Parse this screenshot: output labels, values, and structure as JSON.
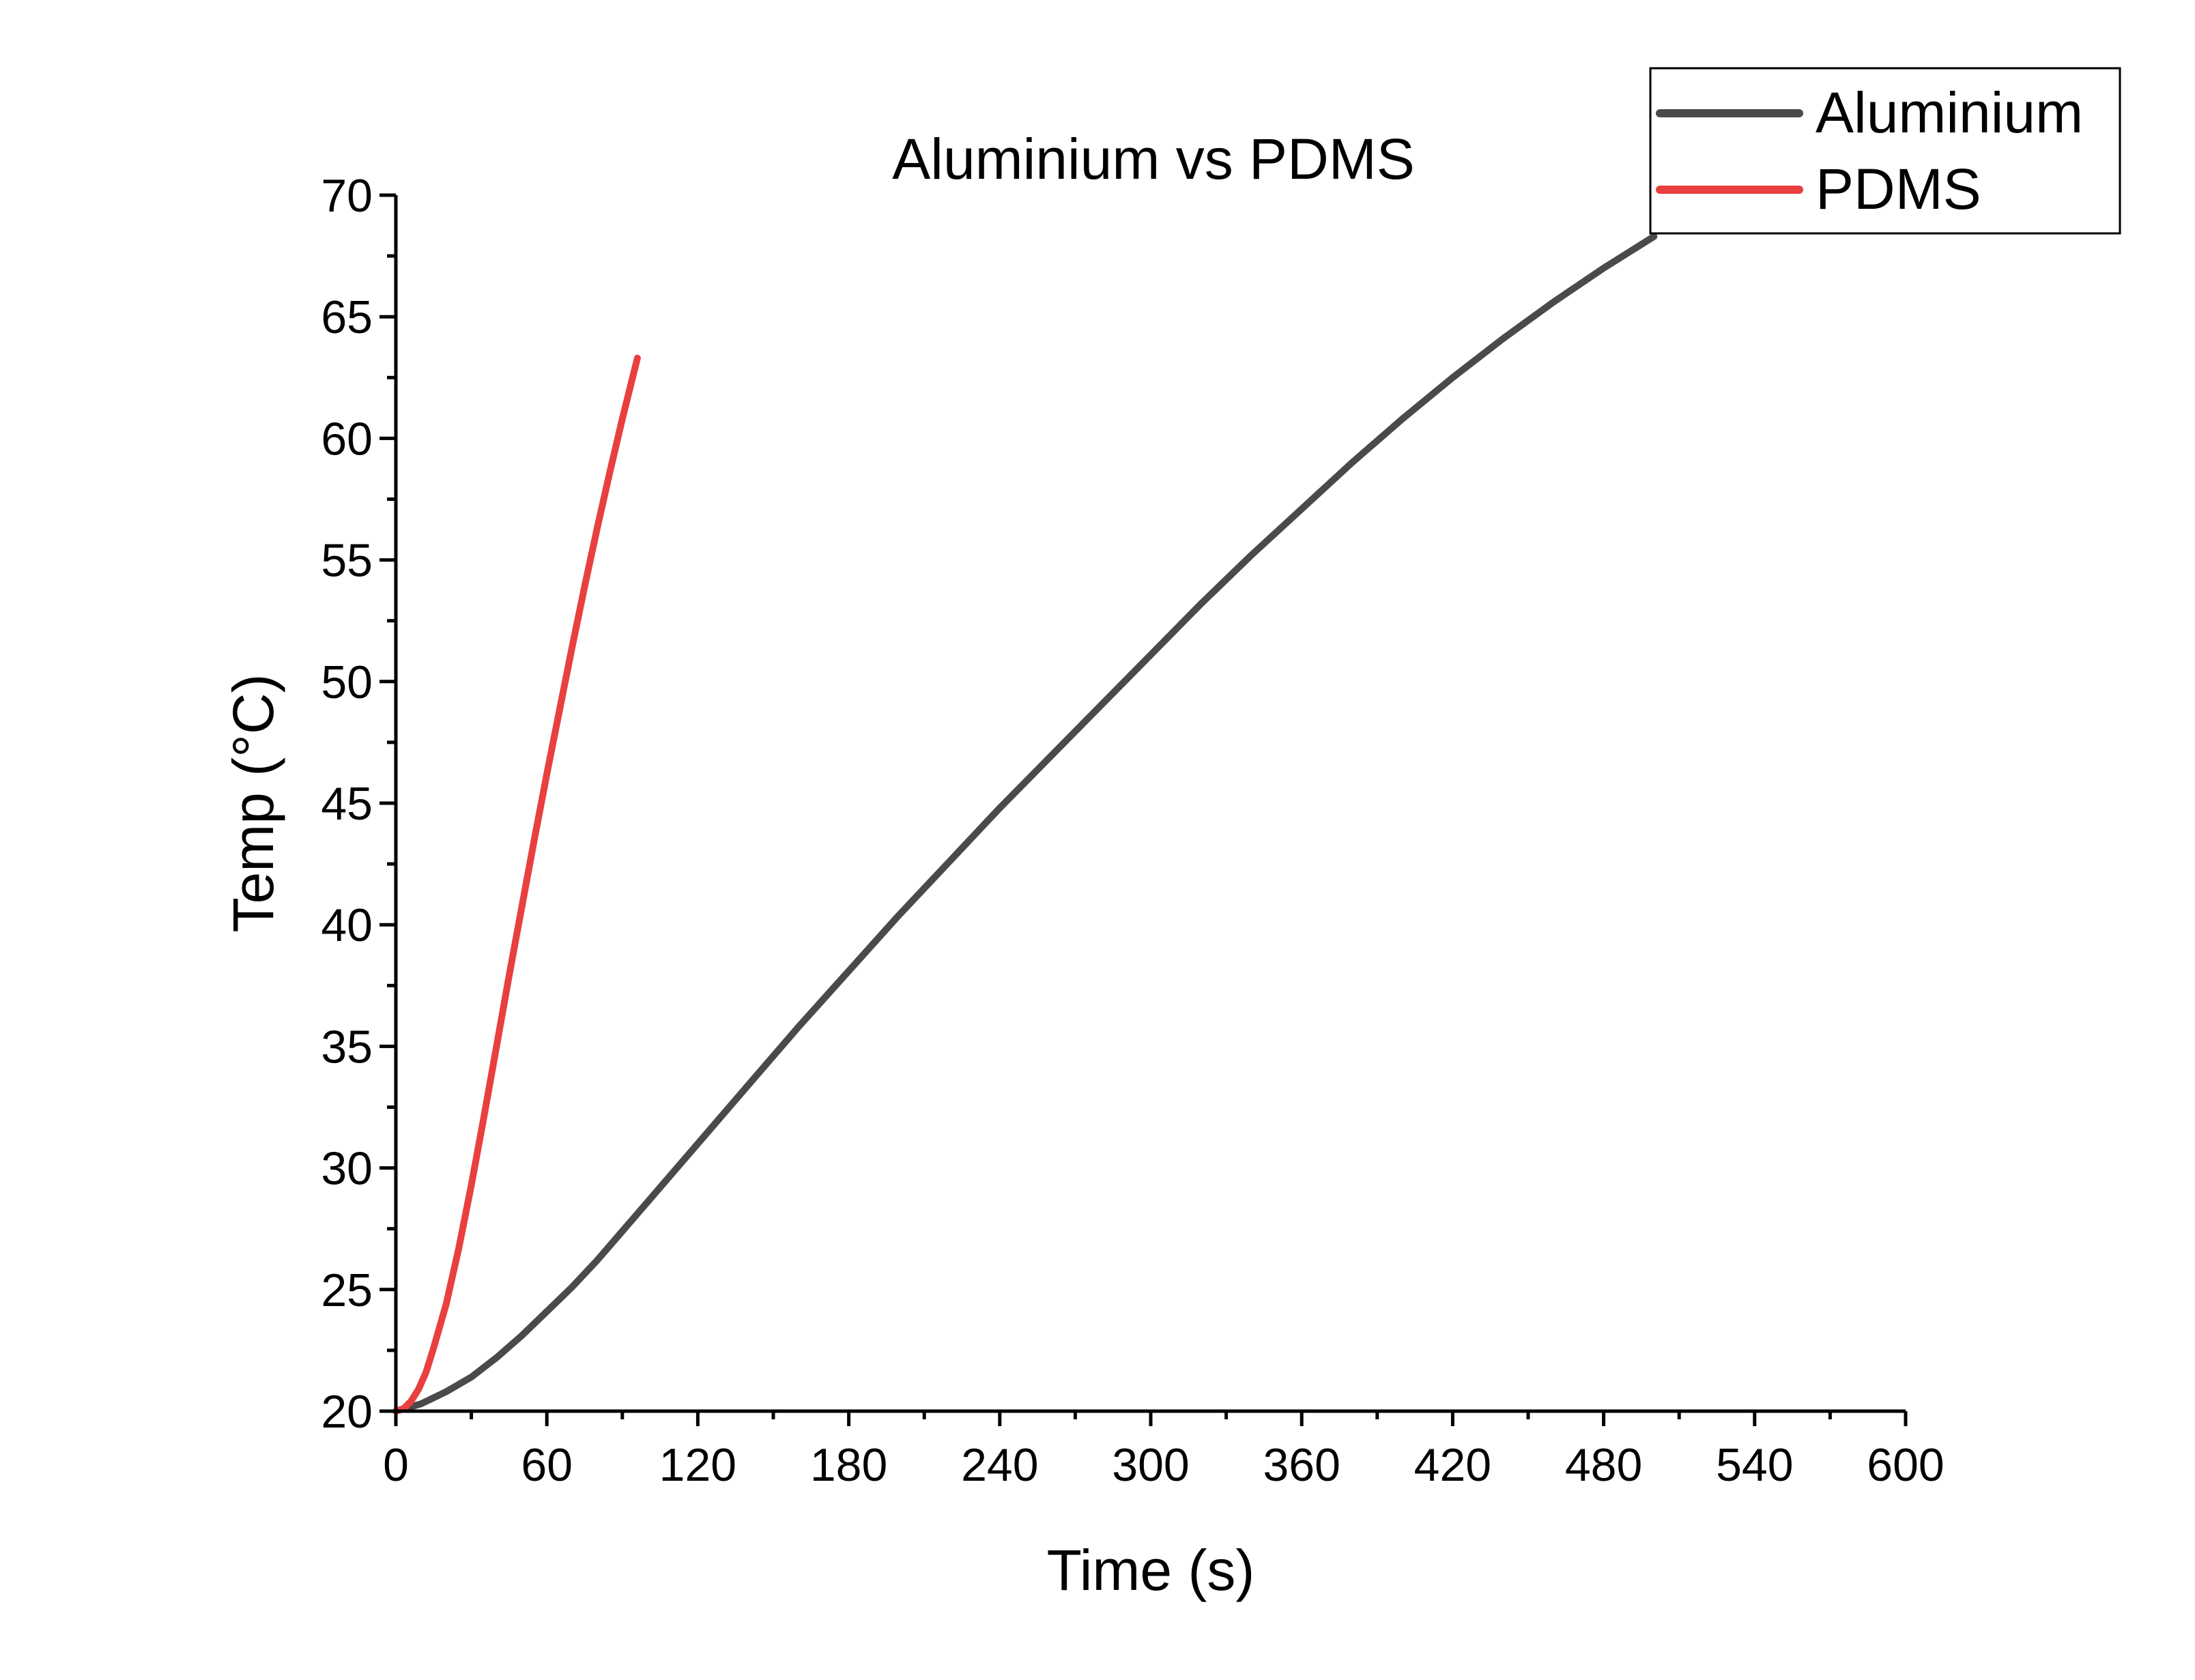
{
  "chart_data": {
    "type": "line",
    "title": "Aluminium vs PDMS",
    "xlabel": "Time (s)",
    "ylabel": "Temp (°C)",
    "xlim": [
      0,
      600
    ],
    "ylim": [
      20,
      70
    ],
    "xticks": [
      0,
      60,
      120,
      180,
      240,
      300,
      360,
      420,
      480,
      540,
      600
    ],
    "yticks": [
      20,
      25,
      30,
      35,
      40,
      45,
      50,
      55,
      60,
      65,
      70
    ],
    "grid": false,
    "legend_position": "top-right",
    "series": [
      {
        "name": "Aluminium",
        "color": "#4a4a4a",
        "x": [
          0,
          10,
          20,
          30,
          40,
          50,
          60,
          70,
          80,
          90,
          100,
          120,
          140,
          160,
          180,
          200,
          220,
          240,
          260,
          280,
          300,
          320,
          340,
          360,
          380,
          400,
          420,
          440,
          460,
          480,
          500
        ],
        "y": [
          20,
          20.3,
          20.8,
          21.4,
          22.2,
          23.1,
          24.1,
          25.1,
          26.2,
          27.4,
          28.6,
          31.0,
          33.4,
          35.8,
          38.1,
          40.4,
          42.6,
          44.8,
          46.9,
          49.0,
          51.1,
          53.2,
          55.2,
          57.1,
          59.0,
          60.8,
          62.5,
          64.1,
          65.6,
          67.0,
          68.3
        ]
      },
      {
        "name": "PDMS",
        "color": "#e8403e",
        "x": [
          0,
          3,
          6,
          9,
          12,
          15,
          20,
          25,
          30,
          35,
          40,
          45,
          50,
          55,
          60,
          65,
          70,
          75,
          80,
          85,
          90,
          96
        ],
        "y": [
          20,
          20.1,
          20.4,
          20.9,
          21.6,
          22.6,
          24.4,
          26.7,
          29.3,
          32.1,
          35.0,
          37.9,
          40.7,
          43.5,
          46.2,
          48.8,
          51.4,
          53.9,
          56.3,
          58.6,
          60.8,
          63.3
        ]
      }
    ]
  }
}
